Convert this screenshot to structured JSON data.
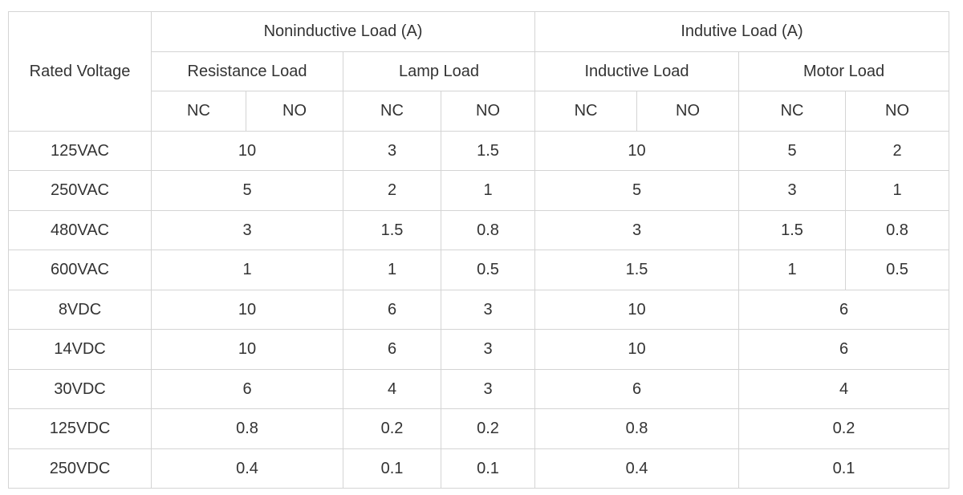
{
  "table": {
    "header": {
      "rated_voltage": "Rated Voltage",
      "noninductive": "Noninductive Load (A)",
      "inductive": "Indutive Load (A)",
      "resistance": "Resistance Load",
      "lamp": "Lamp Load",
      "inductive_load": "Inductive Load",
      "motor": "Motor Load",
      "nc": "NC",
      "no": "NO"
    },
    "rows": [
      {
        "voltage": "125VAC",
        "resistance": "10",
        "lamp_nc": "3",
        "lamp_no": "1.5",
        "inductive": "10",
        "motor_nc": "5",
        "motor_no": "2"
      },
      {
        "voltage": "250VAC",
        "resistance": "5",
        "lamp_nc": "2",
        "lamp_no": "1",
        "inductive": "5",
        "motor_nc": "3",
        "motor_no": "1"
      },
      {
        "voltage": "480VAC",
        "resistance": "3",
        "lamp_nc": "1.5",
        "lamp_no": "0.8",
        "inductive": "3",
        "motor_nc": "1.5",
        "motor_no": "0.8"
      },
      {
        "voltage": "600VAC",
        "resistance": "1",
        "lamp_nc": "1",
        "lamp_no": "0.5",
        "inductive": "1.5",
        "motor_nc": "1",
        "motor_no": "0.5"
      },
      {
        "voltage": "8VDC",
        "resistance": "10",
        "lamp_nc": "6",
        "lamp_no": "3",
        "inductive": "10",
        "motor": "6"
      },
      {
        "voltage": "14VDC",
        "resistance": "10",
        "lamp_nc": "6",
        "lamp_no": "3",
        "inductive": "10",
        "motor": "6"
      },
      {
        "voltage": "30VDC",
        "resistance": "6",
        "lamp_nc": "4",
        "lamp_no": "3",
        "inductive": "6",
        "motor": "4"
      },
      {
        "voltage": "125VDC",
        "resistance": "0.8",
        "lamp_nc": "0.2",
        "lamp_no": "0.2",
        "inductive": "0.8",
        "motor": "0.2"
      },
      {
        "voltage": "250VDC",
        "resistance": "0.4",
        "lamp_nc": "0.1",
        "lamp_no": "0.1",
        "inductive": "0.4",
        "motor": "0.1"
      }
    ]
  }
}
